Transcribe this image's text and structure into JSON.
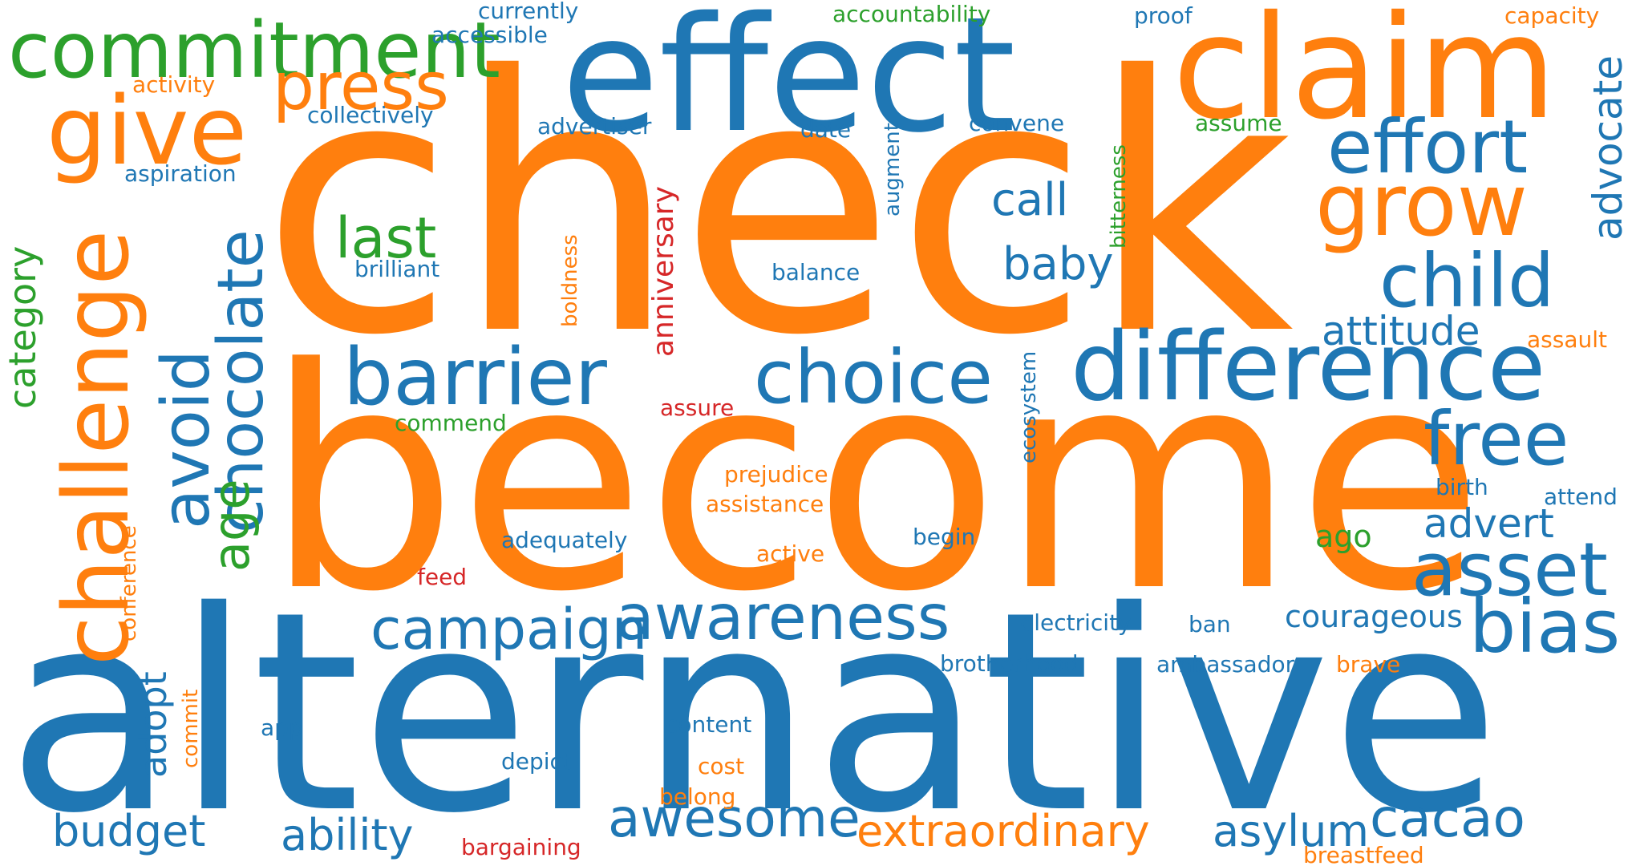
{
  "colors": {
    "blue": "#1f77b4",
    "orange": "#ff7f0e",
    "green": "#2ca02c",
    "red": "#d62728",
    "background": "#ffffff"
  },
  "words": [
    {
      "text": "check",
      "color": "orange"
    },
    {
      "text": "become",
      "color": "orange"
    },
    {
      "text": "alternative",
      "color": "blue"
    },
    {
      "text": "effect",
      "color": "blue"
    },
    {
      "text": "claim",
      "color": "orange"
    },
    {
      "text": "commitment",
      "color": "green"
    },
    {
      "text": "difference",
      "color": "blue"
    },
    {
      "text": "give",
      "color": "orange"
    },
    {
      "text": "press",
      "color": "orange"
    },
    {
      "text": "effort",
      "color": "blue"
    },
    {
      "text": "grow",
      "color": "orange"
    },
    {
      "text": "child",
      "color": "blue"
    },
    {
      "text": "challenge",
      "color": "orange"
    },
    {
      "text": "chocolate",
      "color": "blue"
    },
    {
      "text": "avoid",
      "color": "blue"
    },
    {
      "text": "barrier",
      "color": "blue"
    },
    {
      "text": "choice",
      "color": "blue"
    },
    {
      "text": "asset",
      "color": "blue"
    },
    {
      "text": "bias",
      "color": "blue"
    },
    {
      "text": "awareness",
      "color": "blue"
    },
    {
      "text": "free",
      "color": "blue"
    },
    {
      "text": "campaign",
      "color": "blue"
    },
    {
      "text": "awesome",
      "color": "blue"
    },
    {
      "text": "cacao",
      "color": "blue"
    },
    {
      "text": "last",
      "color": "green"
    },
    {
      "text": "age",
      "color": "green"
    },
    {
      "text": "attitude",
      "color": "blue"
    },
    {
      "text": "advert",
      "color": "blue"
    },
    {
      "text": "call",
      "color": "blue"
    },
    {
      "text": "baby",
      "color": "blue"
    },
    {
      "text": "advocate",
      "color": "blue"
    },
    {
      "text": "extraordinary",
      "color": "orange"
    },
    {
      "text": "asylum",
      "color": "blue"
    },
    {
      "text": "budget",
      "color": "blue"
    },
    {
      "text": "ability",
      "color": "blue"
    },
    {
      "text": "category",
      "color": "green"
    },
    {
      "text": "adopt",
      "color": "blue"
    },
    {
      "text": "courageous",
      "color": "blue"
    },
    {
      "text": "anniversary",
      "color": "red"
    },
    {
      "text": "ago",
      "color": "green"
    },
    {
      "text": "currently",
      "color": "blue"
    },
    {
      "text": "accountability",
      "color": "green"
    },
    {
      "text": "proof",
      "color": "blue"
    },
    {
      "text": "capacity",
      "color": "orange"
    },
    {
      "text": "accessible",
      "color": "blue"
    },
    {
      "text": "activity",
      "color": "orange"
    },
    {
      "text": "collectively",
      "color": "blue"
    },
    {
      "text": "advertiser",
      "color": "blue"
    },
    {
      "text": "date",
      "color": "blue"
    },
    {
      "text": "convene",
      "color": "blue"
    },
    {
      "text": "assume",
      "color": "green"
    },
    {
      "text": "aspiration",
      "color": "blue"
    },
    {
      "text": "augment",
      "color": "blue"
    },
    {
      "text": "bitterness",
      "color": "green"
    },
    {
      "text": "brilliant",
      "color": "blue"
    },
    {
      "text": "boldness",
      "color": "orange"
    },
    {
      "text": "balance",
      "color": "blue"
    },
    {
      "text": "assault",
      "color": "orange"
    },
    {
      "text": "ecosystem",
      "color": "blue"
    },
    {
      "text": "assure",
      "color": "red"
    },
    {
      "text": "commend",
      "color": "green"
    },
    {
      "text": "prejudice",
      "color": "orange"
    },
    {
      "text": "assistance",
      "color": "orange"
    },
    {
      "text": "birth",
      "color": "blue"
    },
    {
      "text": "attend",
      "color": "blue"
    },
    {
      "text": "adequately",
      "color": "blue"
    },
    {
      "text": "begin",
      "color": "blue"
    },
    {
      "text": "active",
      "color": "orange"
    },
    {
      "text": "conference",
      "color": "orange"
    },
    {
      "text": "feed",
      "color": "red"
    },
    {
      "text": "electricity",
      "color": "blue"
    },
    {
      "text": "ban",
      "color": "blue"
    },
    {
      "text": "brotherhood",
      "color": "blue"
    },
    {
      "text": "ambassador",
      "color": "blue"
    },
    {
      "text": "brave",
      "color": "orange"
    },
    {
      "text": "commit",
      "color": "orange"
    },
    {
      "text": "app",
      "color": "blue"
    },
    {
      "text": "content",
      "color": "blue"
    },
    {
      "text": "depict",
      "color": "blue"
    },
    {
      "text": "cost",
      "color": "orange"
    },
    {
      "text": "belong",
      "color": "orange"
    },
    {
      "text": "bargaining",
      "color": "red"
    },
    {
      "text": "breastfeed",
      "color": "orange"
    }
  ]
}
